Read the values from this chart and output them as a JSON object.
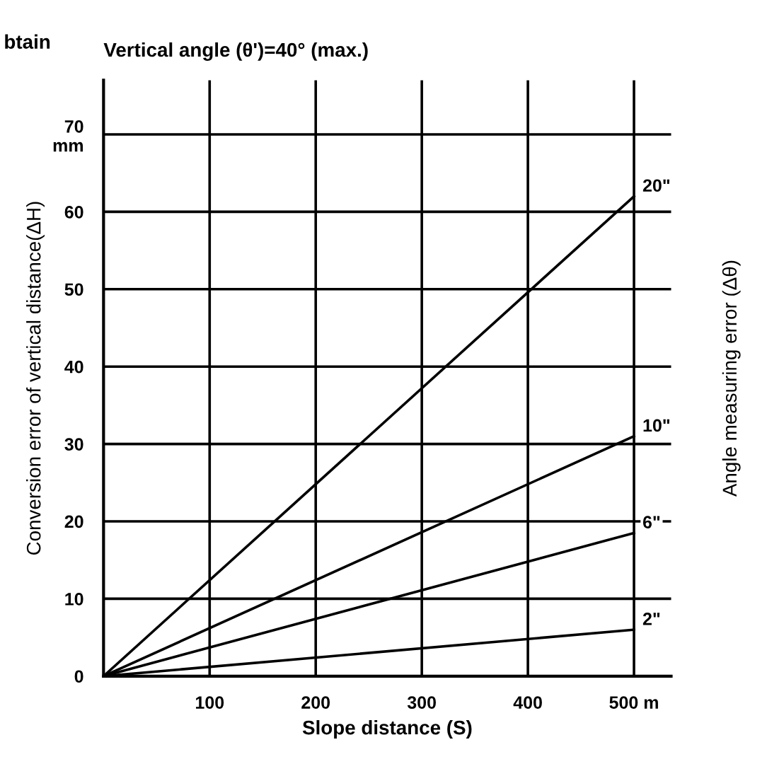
{
  "chart_data": {
    "type": "line",
    "title": "Vertical angle (θ')=40° (max.)",
    "xlabel": "Slope distance (S)",
    "ylabel": "Conversion error of vertical distance(ΔH)",
    "y2label": "Angle measuring error (Δθ)",
    "annotations": [
      "btain"
    ],
    "x": [
      0,
      500
    ],
    "series": [
      {
        "name": "20\"",
        "color": "#000000",
        "values": [
          0,
          62
        ]
      },
      {
        "name": "10\"",
        "color": "#000000",
        "values": [
          0,
          31
        ]
      },
      {
        "name": "6\"",
        "color": "#000000",
        "values": [
          0,
          18.5
        ]
      },
      {
        "name": "2\"",
        "color": "#000000",
        "values": [
          0,
          6
        ]
      }
    ],
    "xlim": [
      0,
      535
    ],
    "ylim": [
      0,
      77
    ],
    "xticks": [
      100,
      200,
      300,
      400,
      {
        "value": 500,
        "label": "500 m"
      }
    ],
    "yticks": [
      0,
      10,
      20,
      30,
      40,
      50,
      60,
      {
        "value": 70,
        "label": "70\nmm"
      }
    ],
    "grid": true,
    "legend": false,
    "marker": "none",
    "line_style": "solid"
  }
}
